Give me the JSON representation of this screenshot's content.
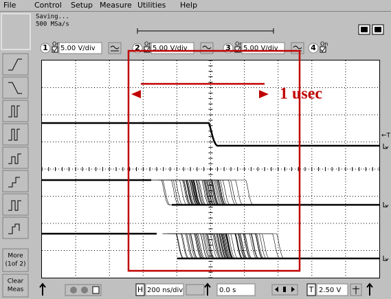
{
  "menu": [
    "File",
    "Control",
    "Setup",
    "Measure",
    "Utilities",
    "Help"
  ],
  "status": {
    "state": "Saving...",
    "sample_rate": "500 MSa/s"
  },
  "channels": [
    {
      "number": "1",
      "on": "On",
      "scale": "5.00 V/div"
    },
    {
      "number": "2",
      "on": "On",
      "scale": "5.00 V/div"
    },
    {
      "number": "3",
      "on": "On",
      "scale": "5.00 V/div"
    },
    {
      "number": "4",
      "on": "On"
    }
  ],
  "side_buttons": [
    {
      "lines": [
        "More",
        "(1of 2)"
      ]
    },
    {
      "lines": [
        "Clear",
        "Meas"
      ]
    }
  ],
  "timebase": {
    "label": "H",
    "scale": "200 ns/div",
    "position": "0.0 s"
  },
  "trigger": {
    "label": "T",
    "level": "2.50 V",
    "marker": "←T"
  },
  "annotation": "1 usec"
}
